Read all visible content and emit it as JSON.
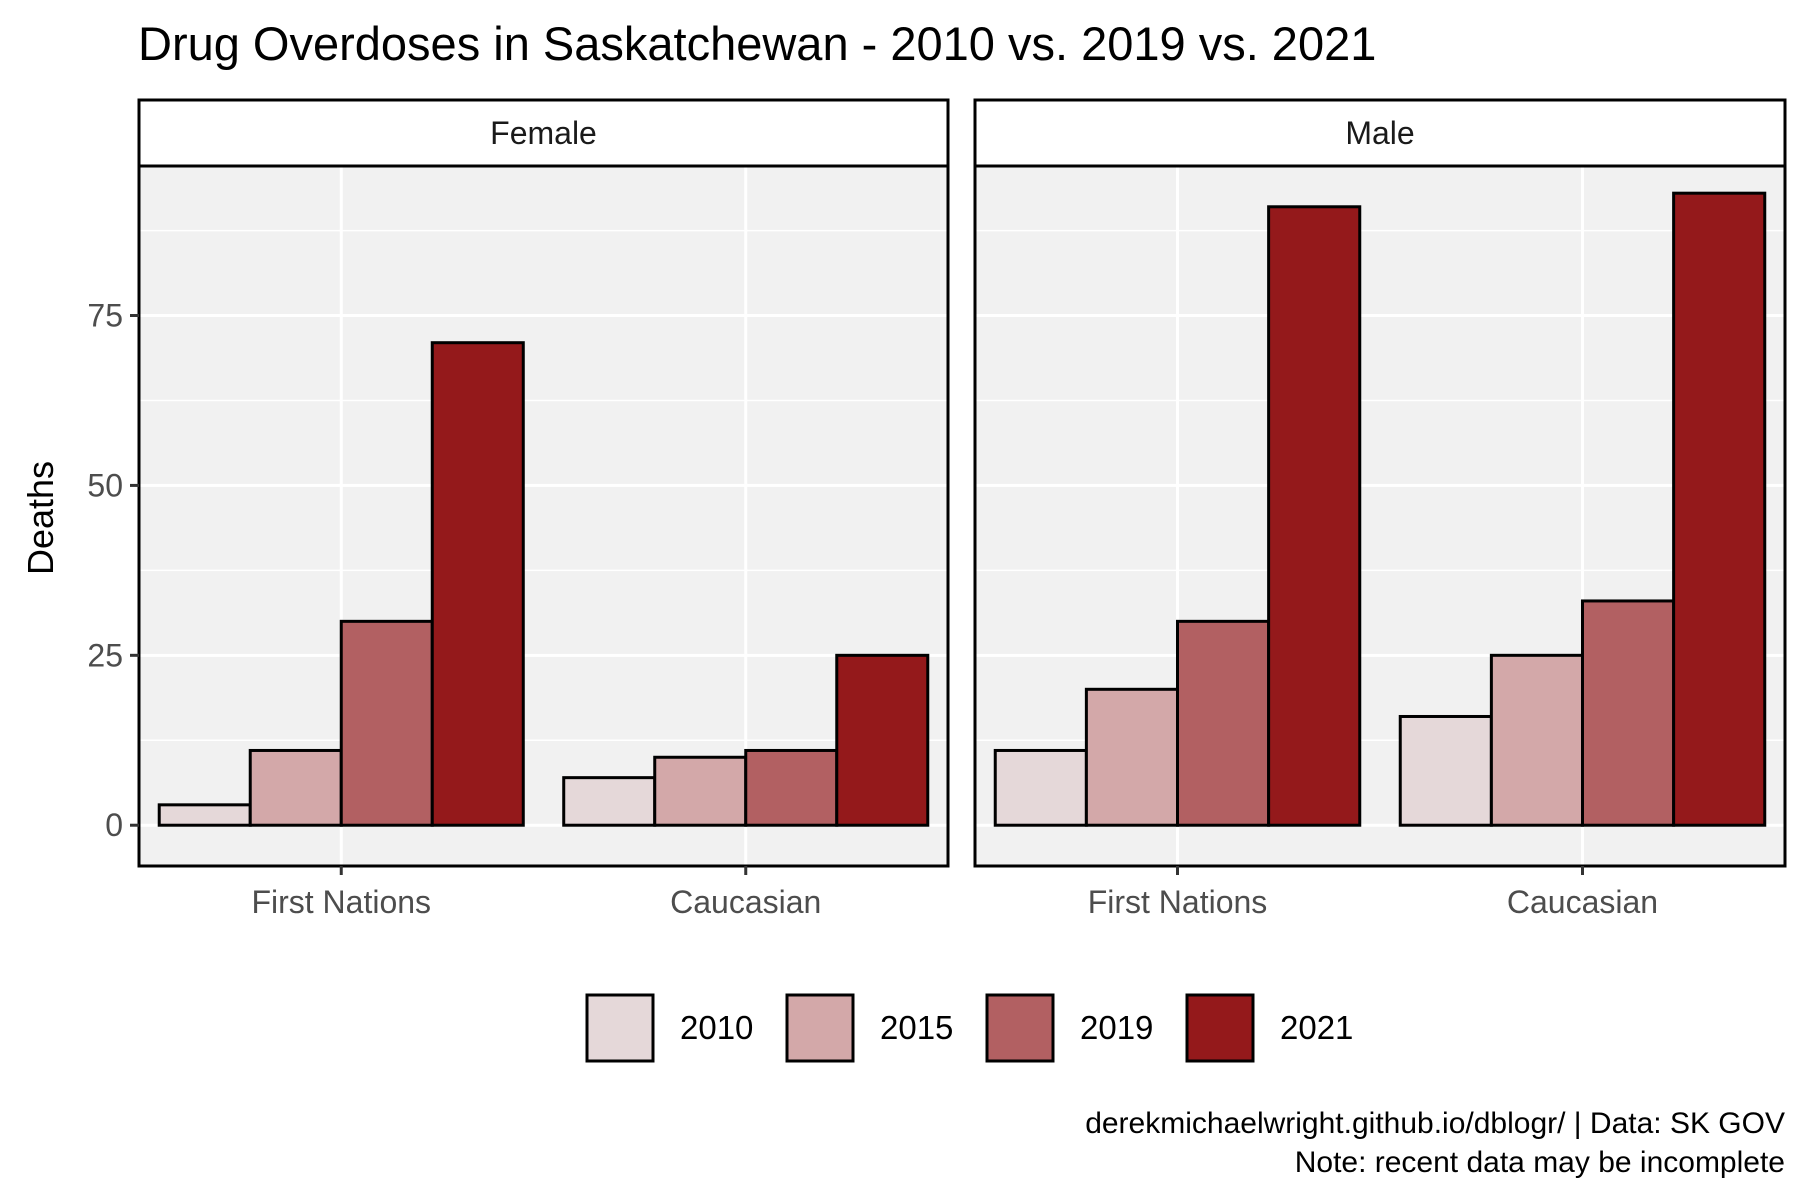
{
  "chart_data": {
    "type": "bar",
    "title": "Drug Overdoses in Saskatchewan - 2010 vs. 2019 vs. 2021",
    "ylabel": "Deaths",
    "xlabel": "",
    "ylim": [
      -6,
      97
    ],
    "yticks": [
      0,
      25,
      50,
      75
    ],
    "categories": [
      "First Nations",
      "Caucasian"
    ],
    "legend_position": "bottom",
    "grid": true,
    "panels": [
      {
        "name": "Female",
        "series": [
          {
            "name": "2010",
            "values": [
              3,
              7
            ]
          },
          {
            "name": "2015",
            "values": [
              11,
              10
            ]
          },
          {
            "name": "2019",
            "values": [
              30,
              11
            ]
          },
          {
            "name": "2021",
            "values": [
              71,
              25
            ]
          }
        ]
      },
      {
        "name": "Male",
        "series": [
          {
            "name": "2010",
            "values": [
              11,
              16
            ]
          },
          {
            "name": "2015",
            "values": [
              20,
              25
            ]
          },
          {
            "name": "2019",
            "values": [
              30,
              33
            ]
          },
          {
            "name": "2021",
            "values": [
              91,
              93
            ]
          }
        ]
      }
    ],
    "legend": [
      "2010",
      "2015",
      "2019",
      "2021"
    ],
    "colors": {
      "2010": "#e5d8d9",
      "2015": "#d3a8a9",
      "2019": "#b26062",
      "2021": "#94191b",
      "panel_background": "#f1f1f1",
      "gridline": "#ffffff",
      "outline": "#000000"
    },
    "caption": [
      "derekmichaelwright.github.io/dblogr/ | Data: SK GOV",
      "Note: recent data may be incomplete"
    ]
  }
}
